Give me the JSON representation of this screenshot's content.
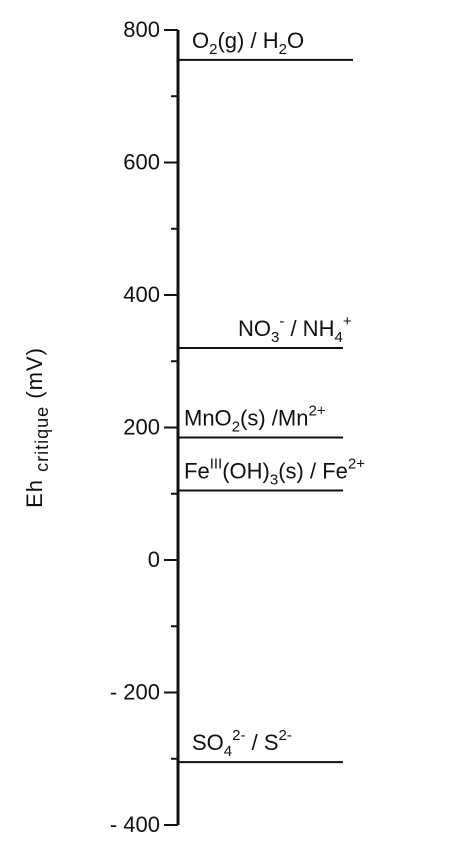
{
  "chart_data": {
    "type": "line",
    "ylabel": "Eh critique (mV)",
    "ylabel_main": "Eh",
    "ylabel_sub": "critique",
    "ylabel_unit": "(mV)",
    "ylim": [
      -400,
      800
    ],
    "yticks": [
      800,
      600,
      400,
      200,
      0,
      -200,
      -400
    ],
    "ytick_labels": [
      "800",
      "600",
      "400",
      "200",
      "0",
      "- 200",
      "- 400"
    ],
    "minor_tick_step": 100,
    "series": [
      {
        "name": "O2(g) / H2O",
        "y": 755,
        "label_parts": [
          "O",
          "2",
          "(g)  /  H",
          "2",
          "O"
        ]
      },
      {
        "name": "NO3- / NH4+",
        "y": 320,
        "label_parts": [
          "NO",
          "3",
          "-",
          "  /  NH",
          "4",
          "+"
        ]
      },
      {
        "name": "MnO2(s) / Mn2+",
        "y": 185,
        "label_parts": [
          "MnO",
          "2",
          "(s)  /Mn",
          "2+"
        ]
      },
      {
        "name": "FeIII(OH)3(s) / Fe2+",
        "y": 105,
        "label_parts": [
          "Fe",
          "III",
          "(OH)",
          "3",
          "(s)  /  Fe",
          "2+"
        ]
      },
      {
        "name": "SO4 2- / S2-",
        "y": -305,
        "label_parts": [
          "SO",
          "4",
          "2-",
          "  /  S",
          "2-"
        ]
      }
    ]
  }
}
